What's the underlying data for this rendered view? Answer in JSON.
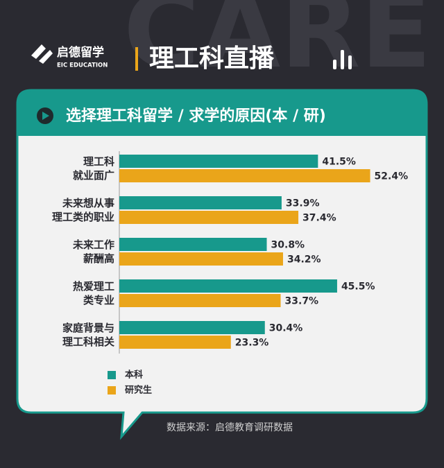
{
  "brand": {
    "name": "启德留学",
    "sub": "EIC EDUCATION"
  },
  "background_text": "CARE",
  "header_title": "理工科直播",
  "chart_data": {
    "type": "bar",
    "orientation": "horizontal",
    "title": "选择理工科留学 / 求学的原因(本 / 研)",
    "categories": [
      "理工科\n就业面广",
      "未来想从事\n理工类的职业",
      "未来工作\n薪酬高",
      "热爱理工\n类专业",
      "家庭背景与\n理工科相关"
    ],
    "series": [
      {
        "name": "本科",
        "color": "#17998c",
        "values": [
          41.5,
          33.9,
          30.8,
          45.5,
          30.4
        ],
        "value_labels": [
          "41.5%",
          "33.9%",
          "30.8%",
          "45.5%",
          "30.4%"
        ]
      },
      {
        "name": "研究生",
        "color": "#eaa51a",
        "values": [
          52.4,
          37.4,
          34.2,
          33.7,
          23.3
        ],
        "value_labels": [
          "52.4%",
          "37.4%",
          "34.2%",
          "33.7%",
          "23.3%"
        ]
      }
    ],
    "source": "数据来源：启德教育调研数据"
  }
}
